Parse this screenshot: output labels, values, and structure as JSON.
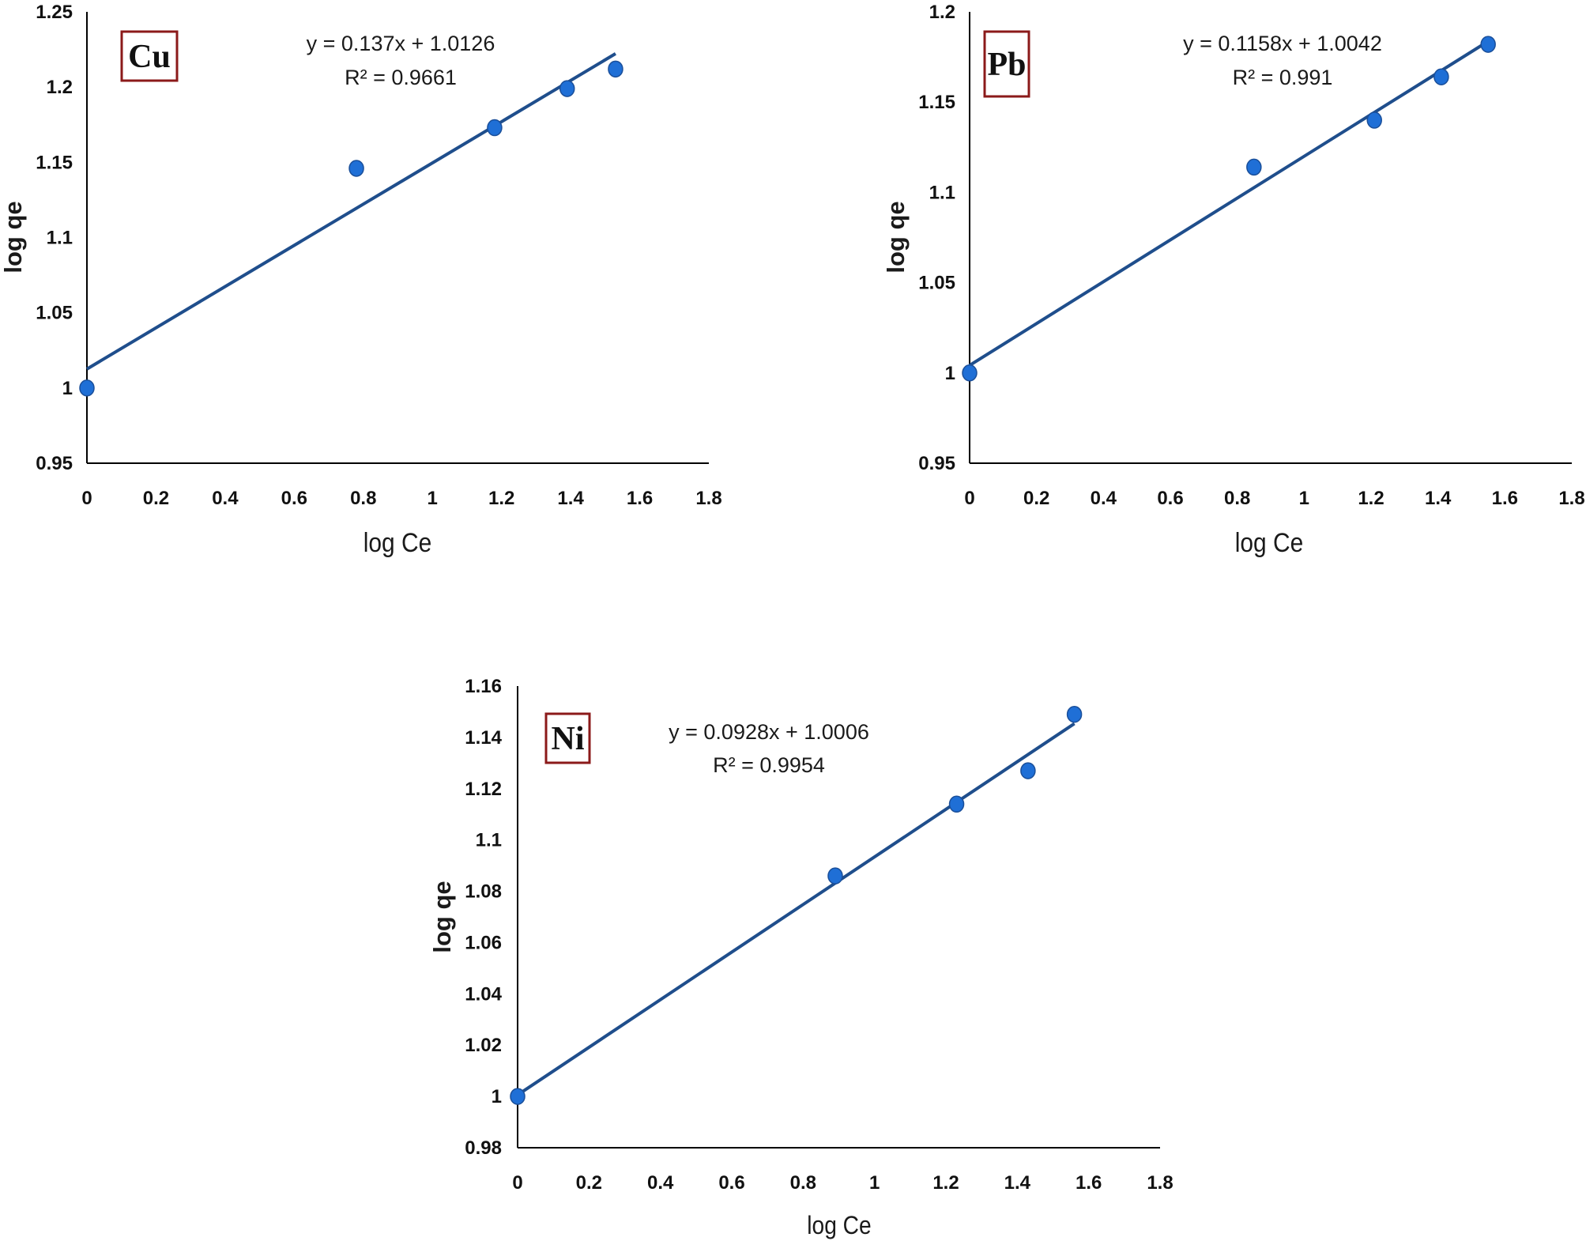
{
  "chart_data": [
    {
      "type": "scatter",
      "id": "cu",
      "title": "Cu",
      "xlabel": "log Ce",
      "ylabel": "log qe",
      "xlim": [
        0,
        1.8
      ],
      "ylim": [
        0.95,
        1.25
      ],
      "xticks": [
        0,
        0.2,
        0.4,
        0.6,
        0.8,
        1,
        1.2,
        1.4,
        1.6,
        1.8
      ],
      "yticks": [
        0.95,
        1,
        1.05,
        1.1,
        1.15,
        1.2,
        1.25
      ],
      "x": [
        0,
        0.78,
        1.18,
        1.39,
        1.53
      ],
      "y": [
        1.0,
        1.146,
        1.173,
        1.199,
        1.212
      ],
      "trendline": {
        "slope": 0.137,
        "intercept": 1.0126,
        "x_range": [
          0,
          1.53
        ]
      },
      "equation": "y = 0.137x + 1.0126",
      "r2": "R² = 0.9661",
      "grid": false
    },
    {
      "type": "scatter",
      "id": "pb",
      "title": "Pb",
      "xlabel": "log Ce",
      "ylabel": "log qe",
      "xlim": [
        0,
        1.8
      ],
      "ylim": [
        0.95,
        1.2
      ],
      "xticks": [
        0,
        0.2,
        0.4,
        0.6,
        0.8,
        1,
        1.2,
        1.4,
        1.6,
        1.8
      ],
      "yticks": [
        0.95,
        1,
        1.05,
        1.1,
        1.15,
        1.2
      ],
      "x": [
        0,
        0.85,
        1.21,
        1.41,
        1.55
      ],
      "y": [
        1.0,
        1.114,
        1.14,
        1.164,
        1.182
      ],
      "trendline": {
        "slope": 0.1158,
        "intercept": 1.0042,
        "x_range": [
          0,
          1.55
        ]
      },
      "equation": "y = 0.1158x + 1.0042",
      "r2": "R² = 0.991",
      "grid": false
    },
    {
      "type": "scatter",
      "id": "ni",
      "title": "Ni",
      "xlabel": "log Ce",
      "ylabel": "log qe",
      "xlim": [
        0,
        1.8
      ],
      "ylim": [
        0.98,
        1.16
      ],
      "xticks": [
        0,
        0.2,
        0.4,
        0.6,
        0.8,
        1,
        1.2,
        1.4,
        1.6,
        1.8
      ],
      "yticks": [
        0.98,
        1,
        1.02,
        1.04,
        1.06,
        1.08,
        1.1,
        1.12,
        1.14,
        1.16
      ],
      "x": [
        0,
        0.89,
        1.23,
        1.43,
        1.56
      ],
      "y": [
        1.0,
        1.086,
        1.114,
        1.127,
        1.149
      ],
      "trendline": {
        "slope": 0.0928,
        "intercept": 1.0006,
        "x_range": [
          0,
          1.56
        ]
      },
      "equation": "y = 0.0928x + 1.0006",
      "r2": "R² = 0.9954",
      "grid": false
    }
  ],
  "colors": {
    "marker": "#1f6fd6",
    "marker_edge": "#1a4f9a",
    "trendline": "#1f4e8c",
    "axis": "#000000",
    "badge_border": "#8b1a1a"
  }
}
